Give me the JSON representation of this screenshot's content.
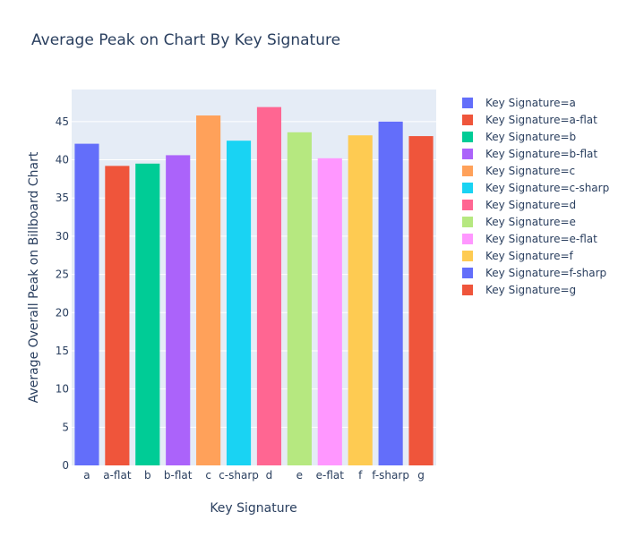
{
  "chart_data": {
    "type": "bar",
    "title": "Average Peak on Chart By Key Signature",
    "xlabel": "Key Signature",
    "ylabel": "Average Overall Peak on Billboard Chart",
    "categories": [
      "a",
      "a-flat",
      "b",
      "b-flat",
      "c",
      "c-sharp",
      "d",
      "e",
      "e-flat",
      "f",
      "f-sharp",
      "g"
    ],
    "values": [
      42.1,
      39.2,
      39.5,
      40.6,
      45.8,
      42.5,
      46.9,
      43.6,
      40.2,
      43.2,
      45.0,
      43.1
    ],
    "ylim": [
      0,
      49.2
    ],
    "yticks": [
      0,
      5,
      10,
      15,
      20,
      25,
      30,
      35,
      40,
      45
    ],
    "grid": true,
    "legend_position": "right",
    "series": [
      {
        "name": "Key Signature=a",
        "color": "#636efa"
      },
      {
        "name": "Key Signature=a-flat",
        "color": "#ef553b"
      },
      {
        "name": "Key Signature=b",
        "color": "#00cc96"
      },
      {
        "name": "Key Signature=b-flat",
        "color": "#ab63fa"
      },
      {
        "name": "Key Signature=c",
        "color": "#ffa15a"
      },
      {
        "name": "Key Signature=c-sharp",
        "color": "#19d3f3"
      },
      {
        "name": "Key Signature=d",
        "color": "#ff6692"
      },
      {
        "name": "Key Signature=e",
        "color": "#b6e880"
      },
      {
        "name": "Key Signature=e-flat",
        "color": "#ff97ff"
      },
      {
        "name": "Key Signature=f",
        "color": "#fecb52"
      },
      {
        "name": "Key Signature=f-sharp",
        "color": "#636efa"
      },
      {
        "name": "Key Signature=g",
        "color": "#ef553b"
      }
    ],
    "colors": {
      "plot_background": "#e5ecf6",
      "grid": "#ffffff",
      "text": "#2a3f5f"
    }
  }
}
